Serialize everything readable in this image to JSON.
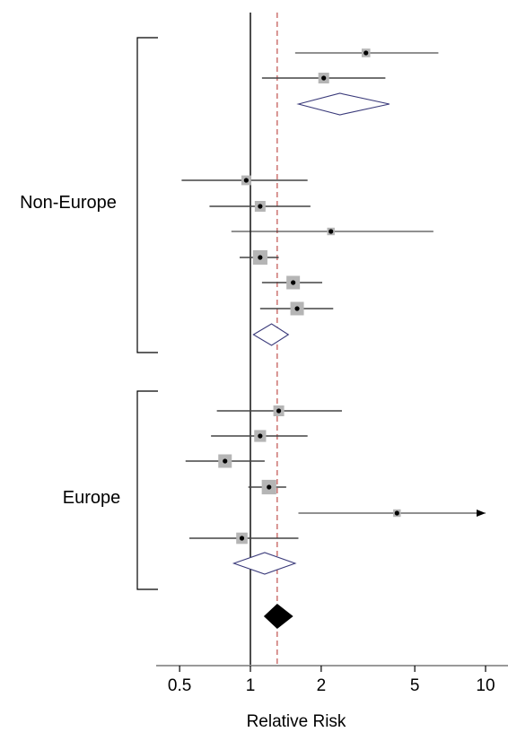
{
  "chart_data": {
    "type": "forest",
    "xlabel": "Relative Risk",
    "x_scale": "log",
    "xlim": [
      0.4,
      11.5
    ],
    "x_ticks": [
      0.5,
      1,
      2,
      5,
      10
    ],
    "x_tick_labels": [
      "0.5",
      "1",
      "2",
      "5",
      "10"
    ],
    "null_line": 1,
    "overall_line": 1.3,
    "groups": [
      {
        "name": "Non-Europe",
        "studies": [
          {
            "rr": 3.1,
            "lower": 1.55,
            "upper": 6.3,
            "weight": 0.3
          },
          {
            "rr": 2.05,
            "lower": 1.12,
            "upper": 3.75,
            "weight": 0.5
          },
          {
            "rr": 0.96,
            "lower": 0.51,
            "upper": 1.75,
            "weight": 0.4
          },
          {
            "rr": 1.1,
            "lower": 0.67,
            "upper": 1.8,
            "weight": 0.5
          },
          {
            "rr": 2.2,
            "lower": 0.83,
            "upper": 6.0,
            "weight": 0.2
          },
          {
            "rr": 1.1,
            "lower": 0.9,
            "upper": 1.32,
            "weight": 0.85
          },
          {
            "rr": 1.52,
            "lower": 1.12,
            "upper": 2.02,
            "weight": 0.75
          },
          {
            "rr": 1.58,
            "lower": 1.1,
            "upper": 2.25,
            "weight": 0.75
          }
        ],
        "subtotals": [
          {
            "rr": 2.4,
            "lower": 1.6,
            "upper": 3.9
          },
          {
            "rr": 1.23,
            "lower": 1.03,
            "upper": 1.45
          }
        ]
      },
      {
        "name": "Europe",
        "studies": [
          {
            "rr": 1.32,
            "lower": 0.72,
            "upper": 2.45,
            "weight": 0.5
          },
          {
            "rr": 1.1,
            "lower": 0.68,
            "upper": 1.75,
            "weight": 0.6
          },
          {
            "rr": 0.78,
            "lower": 0.53,
            "upper": 1.15,
            "weight": 0.75
          },
          {
            "rr": 1.2,
            "lower": 0.98,
            "upper": 1.42,
            "weight": 0.85
          },
          {
            "rr": 4.2,
            "lower": 1.6,
            "upper": 10,
            "weight": 0.2,
            "arrow": true
          },
          {
            "rr": 0.92,
            "lower": 0.55,
            "upper": 1.6,
            "weight": 0.55
          }
        ],
        "subtotals": [
          {
            "rr": 1.15,
            "lower": 0.85,
            "upper": 1.55
          }
        ]
      }
    ],
    "overall": {
      "rr": 1.3,
      "lower": 1.14,
      "upper": 1.52
    }
  }
}
